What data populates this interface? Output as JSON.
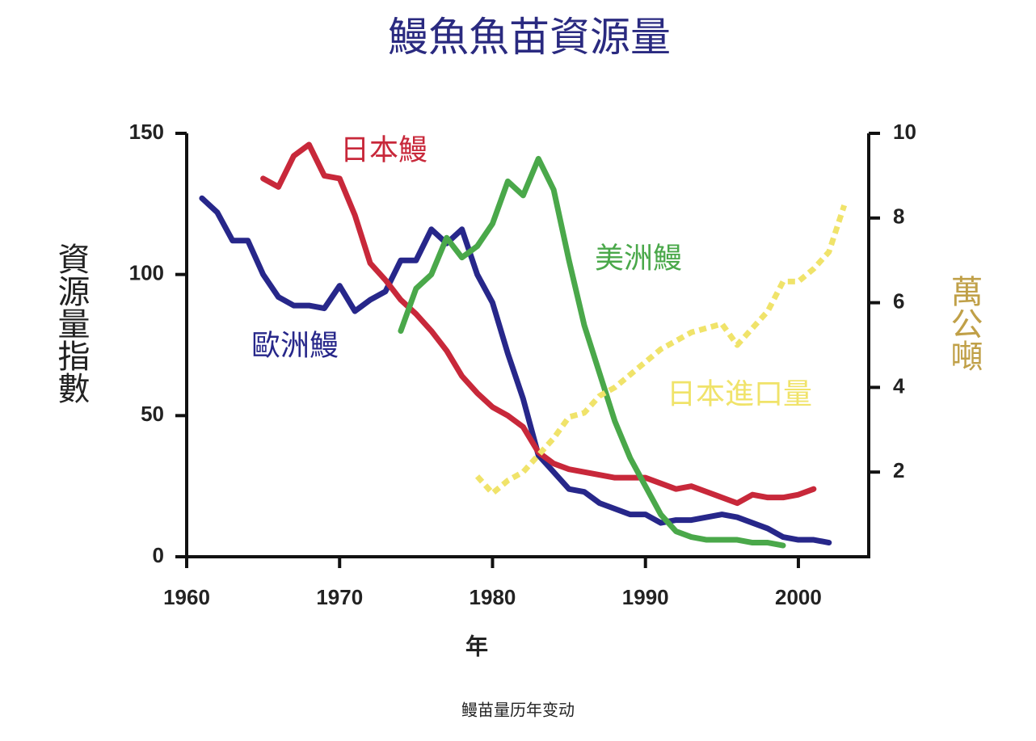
{
  "chart_data": {
    "type": "line",
    "title": "鰻魚魚苗資源量",
    "xlabel": "年",
    "ylabel": "資源量指數",
    "y2label": "萬公噸",
    "caption": "鳗苗量历年变动",
    "x": [
      1961,
      1962,
      1963,
      1964,
      1965,
      1966,
      1967,
      1968,
      1969,
      1970,
      1971,
      1972,
      1973,
      1974,
      1975,
      1976,
      1977,
      1978,
      1979,
      1980,
      1981,
      1982,
      1983,
      1984,
      1985,
      1986,
      1987,
      1988,
      1989,
      1990,
      1991,
      1992,
      1993,
      1994,
      1995,
      1996,
      1997,
      1998,
      1999,
      2000,
      2001,
      2002,
      2003
    ],
    "xlim": [
      1960,
      2004.6
    ],
    "xticks": [
      1960,
      1970,
      1980,
      1990,
      2000
    ],
    "ylim": [
      0,
      150
    ],
    "yticks": [
      0,
      50,
      100,
      150
    ],
    "y2lim": [
      0,
      10
    ],
    "y2ticks": [
      2,
      4,
      6,
      8,
      10
    ],
    "series": [
      {
        "name": "歐洲鰻",
        "color": "#27278a",
        "values": [
          127,
          122,
          112,
          112,
          100,
          92,
          89,
          89,
          88,
          96,
          87,
          91,
          94,
          105,
          105,
          116,
          111,
          116,
          100,
          90,
          72,
          56,
          36,
          30,
          24,
          23,
          19,
          17,
          15,
          15,
          12,
          13,
          13,
          14,
          15,
          14,
          12,
          10,
          7,
          6,
          6,
          5,
          null
        ]
      },
      {
        "name": "日本鰻",
        "color": "#c8283a",
        "values": [
          null,
          null,
          null,
          null,
          134,
          131,
          142,
          146,
          135,
          134,
          121,
          104,
          98,
          91,
          86,
          80,
          73,
          64,
          58,
          53,
          50,
          46,
          37,
          33,
          31,
          30,
          29,
          28,
          28,
          28,
          26,
          24,
          25,
          23,
          21,
          19,
          22,
          21,
          21,
          22,
          24,
          null,
          null
        ]
      },
      {
        "name": "美洲鰻",
        "color": "#4aa84a",
        "values": [
          null,
          null,
          null,
          null,
          null,
          null,
          null,
          null,
          null,
          null,
          null,
          null,
          null,
          80,
          95,
          100,
          113,
          106,
          110,
          118,
          133,
          128,
          141,
          130,
          105,
          82,
          65,
          48,
          35,
          25,
          15,
          9,
          7,
          6,
          6,
          6,
          5,
          5,
          4,
          null,
          null,
          null,
          null
        ]
      },
      {
        "name": "日本進口量",
        "color": "#f0e36a",
        "axis": "y2",
        "values": [
          null,
          null,
          null,
          null,
          null,
          null,
          null,
          null,
          null,
          null,
          null,
          null,
          null,
          null,
          null,
          null,
          null,
          null,
          1.9,
          1.5,
          1.8,
          2.0,
          2.4,
          2.8,
          3.3,
          3.4,
          3.8,
          4.0,
          4.3,
          4.6,
          4.9,
          5.1,
          5.3,
          5.4,
          5.5,
          5.0,
          5.4,
          5.8,
          6.5,
          6.5,
          6.8,
          7.2,
          8.3
        ]
      }
    ]
  }
}
